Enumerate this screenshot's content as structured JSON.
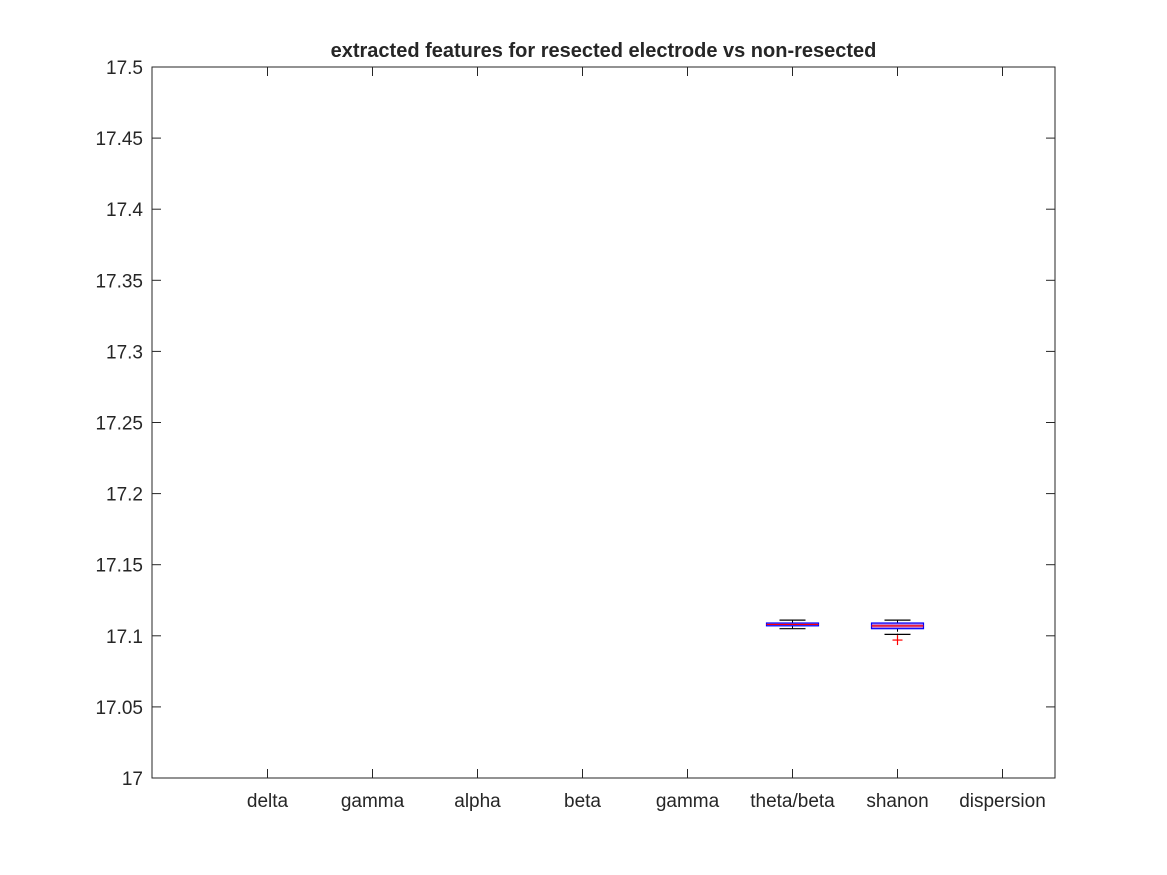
{
  "chart_data": {
    "type": "boxplot",
    "title": "extracted features for resected electrode vs non-resected",
    "xlabel": "",
    "ylabel": "",
    "ylim": [
      17,
      17.5
    ],
    "yticks": [
      17,
      17.05,
      17.1,
      17.15,
      17.2,
      17.25,
      17.3,
      17.35,
      17.4,
      17.45,
      17.5
    ],
    "ytick_labels": [
      "17",
      "17.05",
      "17.1",
      "17.15",
      "17.2",
      "17.25",
      "17.3",
      "17.35",
      "17.4",
      "17.45",
      "17.5"
    ],
    "categories": [
      "delta",
      "gamma",
      "alpha",
      "beta",
      "gamma",
      "theta/beta",
      "shanon",
      "dispersion"
    ],
    "grid": false,
    "boxes": [
      {
        "category_index": 5,
        "whisker_low": 17.105,
        "q1": 17.107,
        "median": 17.108,
        "q3": 17.109,
        "whisker_high": 17.111,
        "outliers": []
      },
      {
        "category_index": 6,
        "whisker_low": 17.101,
        "q1": 17.105,
        "median": 17.107,
        "q3": 17.109,
        "whisker_high": 17.111,
        "outliers": [
          17.097
        ]
      }
    ],
    "colors": {
      "box": "#0000ff",
      "fill": "#b57edc",
      "median": "#ff0000",
      "outlier": "#ff0000",
      "whisker": "#000000"
    }
  }
}
